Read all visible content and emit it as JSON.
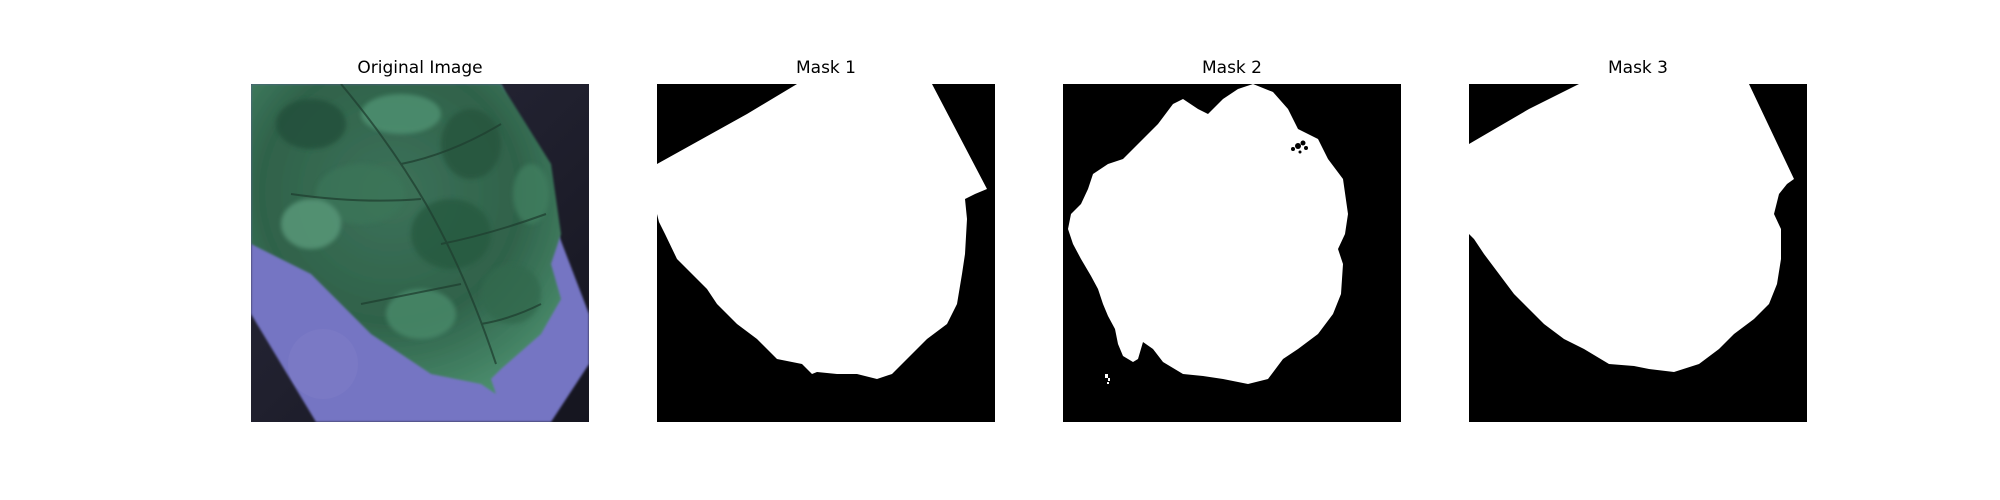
{
  "figure": {
    "panels": [
      {
        "title": "Original Image",
        "kind": "photo"
      },
      {
        "title": "Mask 1",
        "kind": "mask"
      },
      {
        "title": "Mask 2",
        "kind": "mask"
      },
      {
        "title": "Mask 3",
        "kind": "mask"
      }
    ]
  },
  "colors": {
    "mask_foreground": "#ffffff",
    "mask_background": "#000000",
    "leaf_dark_green": "#2c5c43",
    "leaf_mid_green": "#4d8a6a",
    "paper_lavender": "#7574c4",
    "edge_dark": "#1c1c2e",
    "glare": "#d9d6f2"
  }
}
